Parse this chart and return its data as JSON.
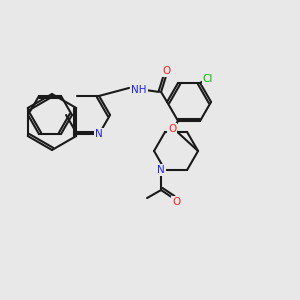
{
  "bg_color": "#e8e8e8",
  "bond_color": "#1a1a1a",
  "bond_lw": 1.5,
  "atom_colors": {
    "N": "#2020ff",
    "O": "#ff2020",
    "Cl": "#00bb00",
    "C": "#1a1a1a"
  },
  "font_size": 7.5
}
